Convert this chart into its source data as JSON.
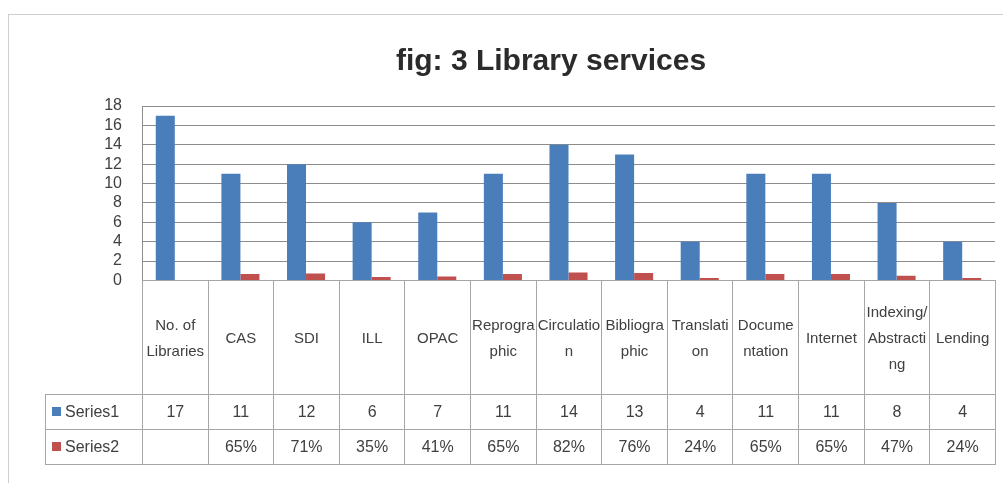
{
  "chart_data": {
    "type": "bar",
    "title": "fig: 3 Library services",
    "categories": [
      "No. of Libraries",
      "CAS",
      "SDI",
      "ILL",
      "OPAC",
      "Reprographic",
      "Circulation",
      "Bibliographic",
      "Translation",
      "Documentation",
      "Internet",
      "Indexing/Abstracting",
      "Lending"
    ],
    "series": [
      {
        "name": "Series1",
        "color": "#4a7ebb",
        "values": [
          17,
          11,
          12,
          6,
          7,
          11,
          14,
          13,
          4,
          11,
          11,
          8,
          4
        ],
        "value_labels": [
          "17",
          "11",
          "12",
          "6",
          "7",
          "11",
          "14",
          "13",
          "4",
          "11",
          "11",
          "8",
          "4"
        ]
      },
      {
        "name": "Series2",
        "color": "#c0504d",
        "values": [
          null,
          0.65,
          0.71,
          0.35,
          0.41,
          0.65,
          0.82,
          0.76,
          0.24,
          0.65,
          0.65,
          0.47,
          0.24
        ],
        "value_labels": [
          null,
          "65%",
          "71%",
          "35%",
          "41%",
          "65%",
          "82%",
          "76%",
          "24%",
          "65%",
          "65%",
          "47%",
          "24%"
        ]
      }
    ],
    "ylim": [
      0,
      18
    ],
    "yticks": [
      0,
      2,
      4,
      6,
      8,
      10,
      12,
      14,
      16,
      18
    ],
    "grid": "y",
    "legend": "bottom left"
  }
}
